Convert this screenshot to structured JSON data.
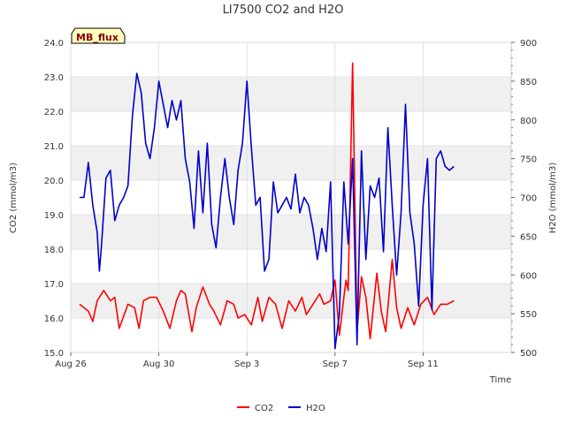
{
  "chart_data": {
    "type": "line",
    "title": "LI7500 CO2 and H2O",
    "badge": "MB_flux",
    "xlabel": "Time",
    "ylabel_left": "CO2 (mmol/m3)",
    "ylabel_right": "H2O (mmol/m3)",
    "x_unit": "days since Aug 26",
    "xlim": [
      0,
      20
    ],
    "x_ticks": [
      {
        "x": 0,
        "label": "Aug 26"
      },
      {
        "x": 4,
        "label": "Aug 30"
      },
      {
        "x": 8,
        "label": "Sep 3"
      },
      {
        "x": 12,
        "label": "Sep 7"
      },
      {
        "x": 16,
        "label": "Sep 11"
      }
    ],
    "ylim_left": [
      15.0,
      24.0
    ],
    "y_ticks_left": [
      "15.0",
      "16.0",
      "17.0",
      "18.0",
      "19.0",
      "20.0",
      "21.0",
      "22.0",
      "23.0",
      "24.0"
    ],
    "ylim_right": [
      500,
      900
    ],
    "y_ticks_right": [
      "500",
      "550",
      "600",
      "650",
      "700",
      "750",
      "800",
      "850",
      "900"
    ],
    "legend": {
      "position": "bottom-center",
      "entries": [
        "CO2",
        "H2O"
      ]
    },
    "colors": {
      "co2": "#ff0000",
      "h2o": "#0000cc",
      "band": "#f0f0f0",
      "badge_bg": "#ffffc0"
    },
    "series": [
      {
        "name": "CO2",
        "axis": "left",
        "x": [
          0.4,
          0.8,
          1.0,
          1.2,
          1.5,
          1.8,
          2.0,
          2.2,
          2.6,
          2.9,
          3.1,
          3.3,
          3.6,
          3.9,
          4.2,
          4.5,
          4.8,
          5.0,
          5.2,
          5.5,
          5.7,
          6.0,
          6.3,
          6.5,
          6.8,
          7.1,
          7.4,
          7.6,
          7.9,
          8.2,
          8.5,
          8.7,
          9.0,
          9.3,
          9.6,
          9.9,
          10.2,
          10.5,
          10.7,
          11.0,
          11.3,
          11.5,
          11.8,
          12.0,
          12.2,
          12.4,
          12.5,
          12.6,
          12.8,
          13.0,
          13.2,
          13.4,
          13.6,
          13.9,
          14.1,
          14.3,
          14.6,
          14.8,
          15.0,
          15.3,
          15.6,
          15.9,
          16.2,
          16.5,
          16.8,
          17.1,
          17.4
        ],
        "y": [
          16.4,
          16.2,
          15.9,
          16.5,
          16.8,
          16.5,
          16.6,
          15.7,
          16.4,
          16.3,
          15.7,
          16.5,
          16.6,
          16.6,
          16.2,
          15.7,
          16.5,
          16.8,
          16.7,
          15.6,
          16.3,
          16.9,
          16.4,
          16.2,
          15.8,
          16.5,
          16.4,
          16.0,
          16.1,
          15.8,
          16.6,
          15.9,
          16.6,
          16.4,
          15.7,
          16.5,
          16.2,
          16.6,
          16.1,
          16.4,
          16.7,
          16.4,
          16.5,
          17.1,
          15.5,
          16.6,
          17.1,
          16.8,
          23.4,
          15.6,
          17.2,
          16.6,
          15.4,
          17.3,
          16.2,
          15.6,
          17.7,
          16.3,
          15.7,
          16.3,
          15.8,
          16.4,
          16.6,
          16.1,
          16.4,
          16.4,
          16.5
        ]
      },
      {
        "name": "H2O",
        "axis": "right",
        "x": [
          0.4,
          0.6,
          0.8,
          1.0,
          1.2,
          1.3,
          1.4,
          1.6,
          1.8,
          2.0,
          2.2,
          2.4,
          2.6,
          2.8,
          3.0,
          3.2,
          3.4,
          3.6,
          3.8,
          4.0,
          4.2,
          4.4,
          4.6,
          4.8,
          5.0,
          5.2,
          5.4,
          5.6,
          5.8,
          6.0,
          6.2,
          6.4,
          6.6,
          6.8,
          7.0,
          7.2,
          7.4,
          7.6,
          7.8,
          8.0,
          8.2,
          8.4,
          8.6,
          8.8,
          9.0,
          9.2,
          9.4,
          9.6,
          9.8,
          10.0,
          10.2,
          10.4,
          10.6,
          10.8,
          11.0,
          11.2,
          11.4,
          11.6,
          11.8,
          12.0,
          12.2,
          12.4,
          12.6,
          12.8,
          13.0,
          13.2,
          13.4,
          13.6,
          13.8,
          14.0,
          14.2,
          14.4,
          14.6,
          14.8,
          15.0,
          15.2,
          15.4,
          15.6,
          15.8,
          16.0,
          16.2,
          16.4,
          16.6,
          16.8,
          17.0,
          17.2,
          17.4
        ],
        "y": [
          700,
          700,
          745,
          690,
          655,
          605,
          640,
          725,
          735,
          670,
          690,
          700,
          715,
          805,
          860,
          835,
          770,
          750,
          790,
          850,
          820,
          790,
          825,
          800,
          825,
          750,
          720,
          660,
          760,
          680,
          770,
          665,
          635,
          700,
          750,
          700,
          665,
          735,
          770,
          850,
          765,
          690,
          700,
          605,
          620,
          720,
          680,
          690,
          700,
          685,
          730,
          680,
          700,
          690,
          660,
          620,
          660,
          630,
          720,
          505,
          550,
          720,
          640,
          750,
          510,
          760,
          620,
          715,
          700,
          725,
          630,
          790,
          690,
          600,
          680,
          820,
          680,
          640,
          560,
          690,
          750,
          555,
          750,
          760,
          740,
          735,
          740
        ]
      }
    ]
  }
}
